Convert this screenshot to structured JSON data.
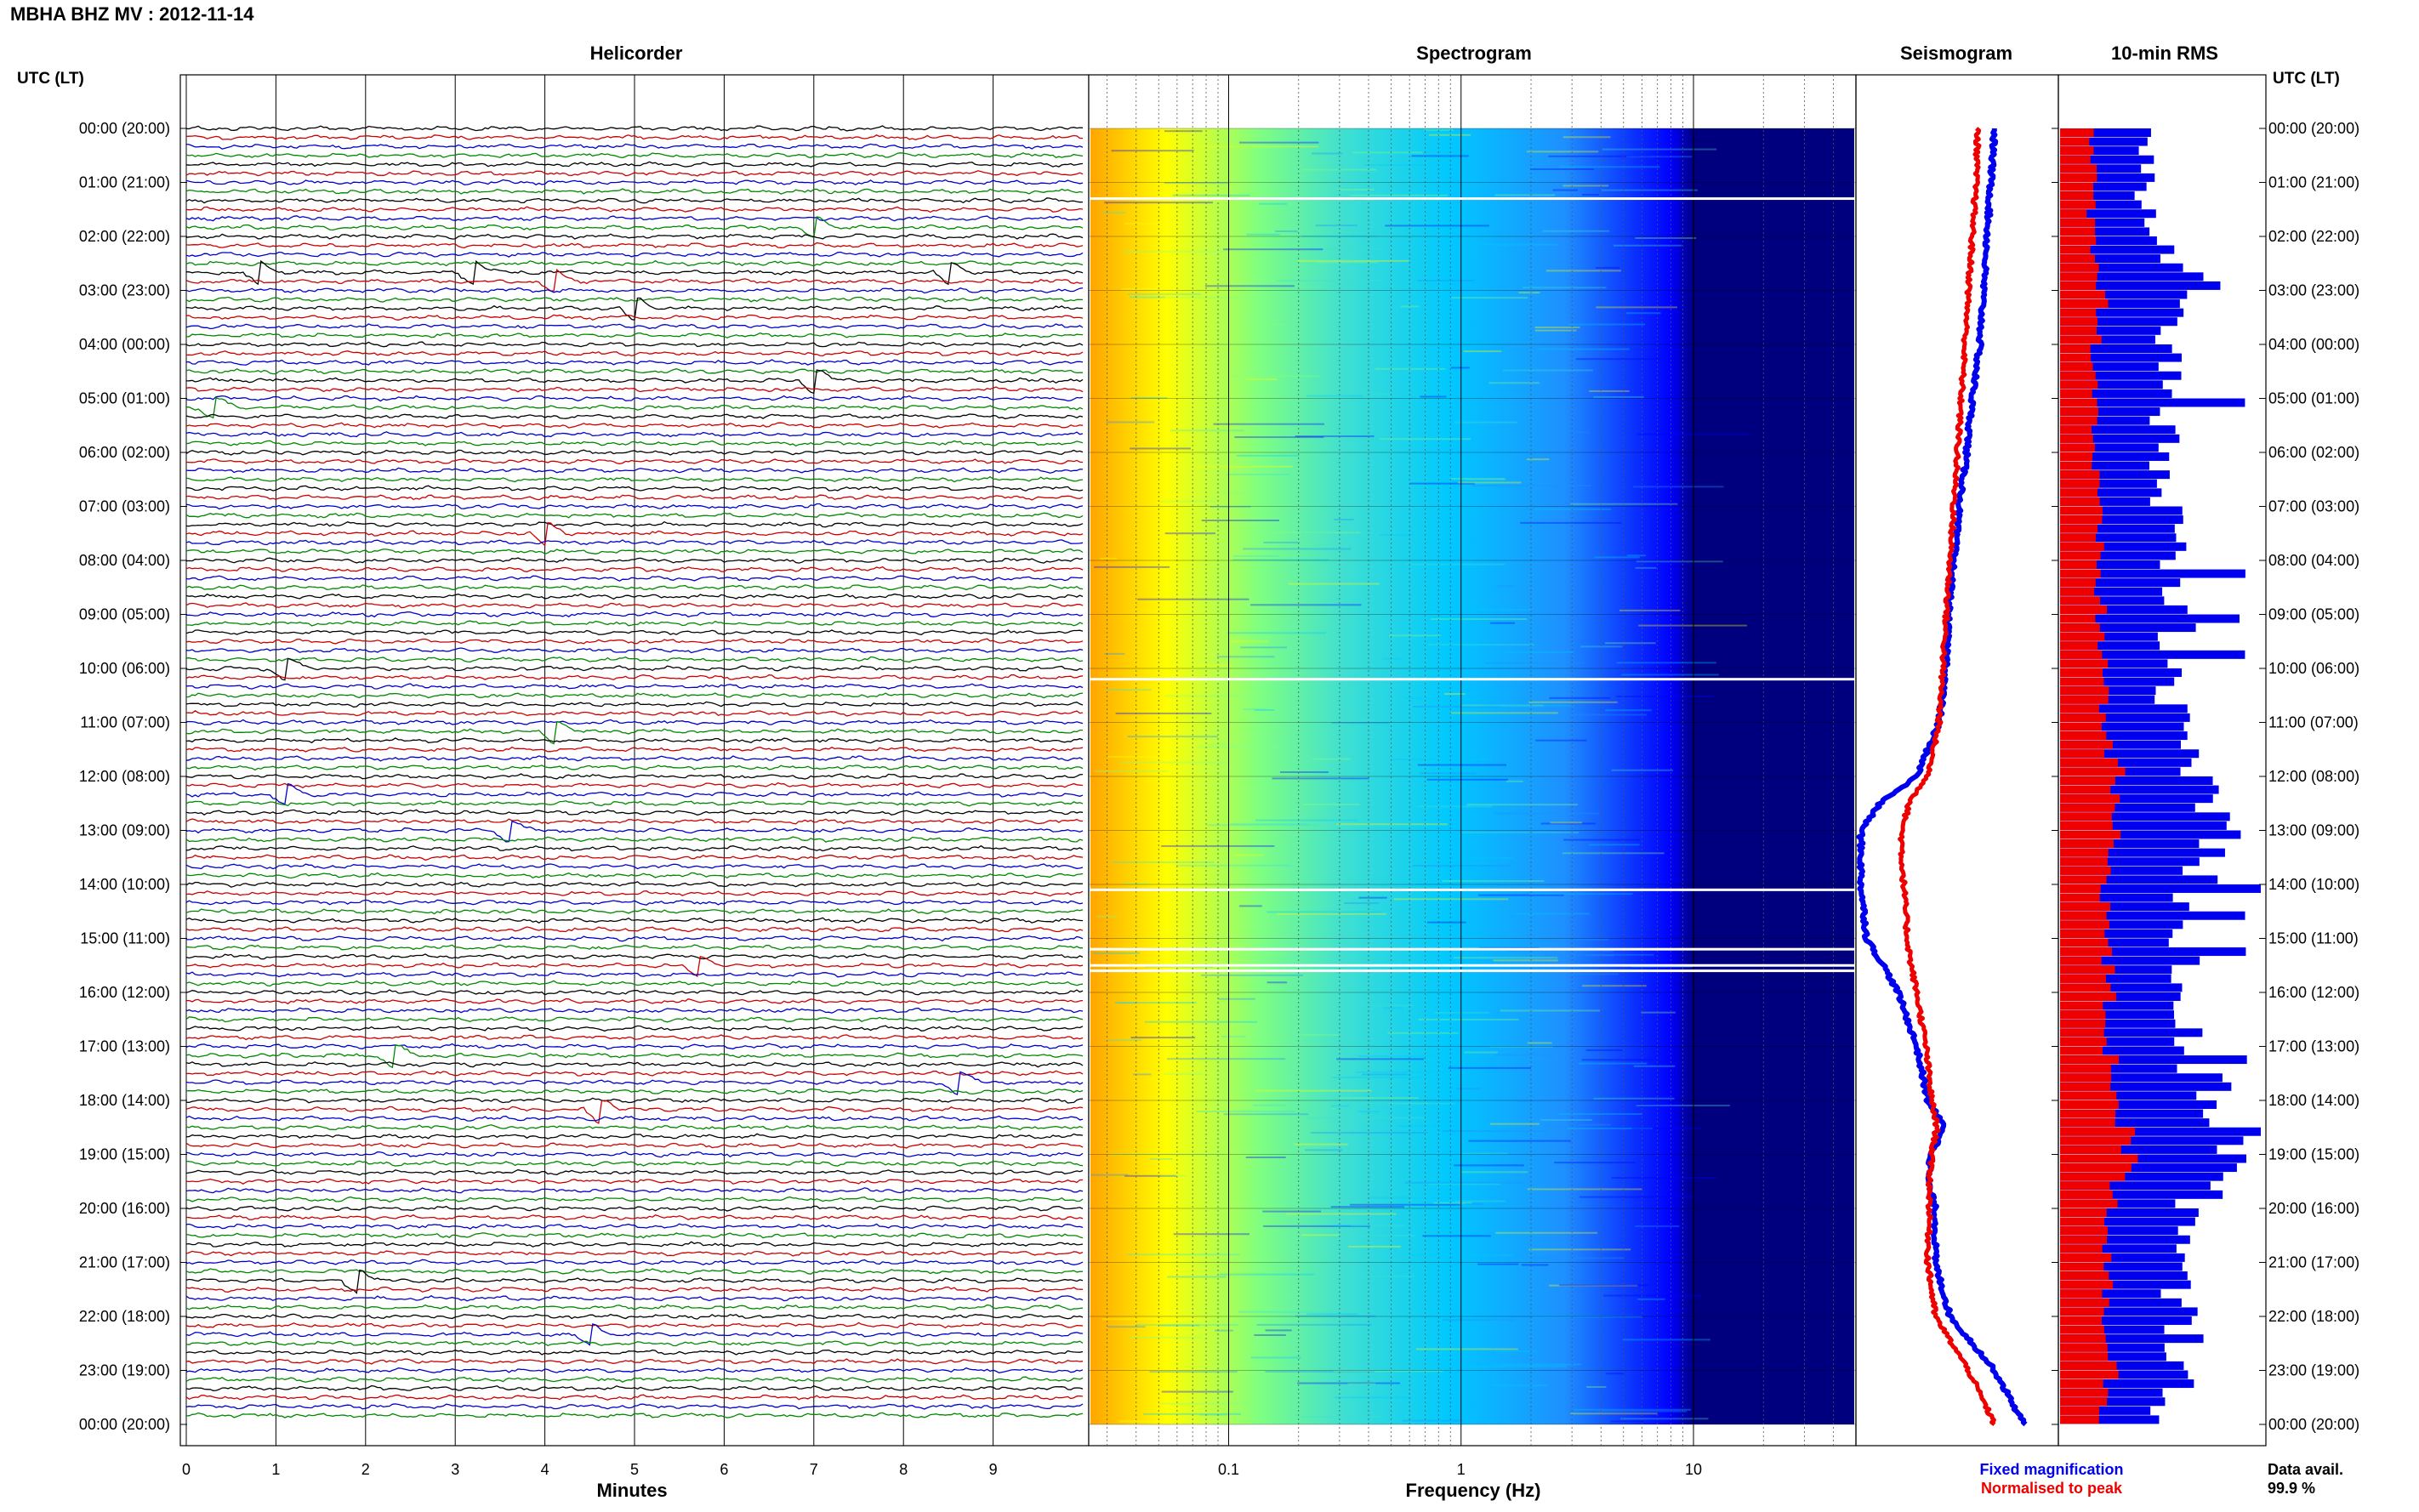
{
  "page": {
    "station_title": "MBHA BHZ MV : 2012-11-14"
  },
  "panels": {
    "helicorder": "Helicorder",
    "spectrogram": "Spectrogram",
    "seismogram": "Seismogram",
    "rms": "10-min RMS"
  },
  "time_axis": {
    "header": "UTC (LT)",
    "labels": [
      "00:00 (20:00)",
      "01:00 (21:00)",
      "02:00 (22:00)",
      "03:00 (23:00)",
      "04:00 (00:00)",
      "05:00 (01:00)",
      "06:00 (02:00)",
      "07:00 (03:00)",
      "08:00 (04:00)",
      "09:00 (05:00)",
      "10:00 (06:00)",
      "11:00 (07:00)",
      "12:00 (08:00)",
      "13:00 (09:00)",
      "14:00 (10:00)",
      "15:00 (11:00)",
      "16:00 (12:00)",
      "17:00 (13:00)",
      "18:00 (14:00)",
      "19:00 (15:00)",
      "20:00 (16:00)",
      "21:00 (17:00)",
      "22:00 (18:00)",
      "23:00 (19:00)",
      "00:00 (20:00)"
    ]
  },
  "axes": {
    "minutes_label": "Minutes",
    "minute_ticks": [
      "0",
      "1",
      "2",
      "3",
      "4",
      "5",
      "6",
      "7",
      "8",
      "9"
    ],
    "frequency_label": "Frequency (Hz)",
    "frequency_ticks": [
      "0.1",
      "1",
      "10"
    ]
  },
  "legend": {
    "fixed": "Fixed magnification",
    "normalised": "Normalised to peak",
    "fixed_color": "#0000ee",
    "normalised_color": "#ee0000",
    "data_avail_label": "Data avail.",
    "data_avail_value": "99.9 %"
  },
  "colors": {
    "trace_cycle": [
      "#000000",
      "#cc0000",
      "#0000cc",
      "#008800"
    ],
    "spectrogram_colormap": [
      "#00007f",
      "#0000ff",
      "#1e90ff",
      "#00c8ff",
      "#40e0d0",
      "#80ff80",
      "#ffff00",
      "#ffa500"
    ]
  },
  "chart_data": [
    {
      "type": "line",
      "title": "Helicorder",
      "xlabel": "Minutes",
      "xlim": [
        0,
        10
      ],
      "rows_per_hour": 6,
      "hours": 24,
      "events": [
        {
          "row": 11,
          "minute": 6.9
        },
        {
          "row": 16,
          "minute": 0.7
        },
        {
          "row": 16,
          "minute": 3.1
        },
        {
          "row": 16,
          "minute": 8.4
        },
        {
          "row": 17,
          "minute": 4.0
        },
        {
          "row": 20,
          "minute": 4.9
        },
        {
          "row": 28,
          "minute": 6.9
        },
        {
          "row": 31,
          "minute": 0.2
        },
        {
          "row": 45,
          "minute": 3.9
        },
        {
          "row": 60,
          "minute": 1.0
        },
        {
          "row": 67,
          "minute": 4.0
        },
        {
          "row": 74,
          "minute": 1.0
        },
        {
          "row": 78,
          "minute": 3.5
        },
        {
          "row": 93,
          "minute": 5.6
        },
        {
          "row": 103,
          "minute": 2.2
        },
        {
          "row": 106,
          "minute": 8.5
        },
        {
          "row": 109,
          "minute": 4.5
        },
        {
          "row": 128,
          "minute": 1.8
        },
        {
          "row": 134,
          "minute": 4.4
        }
      ]
    },
    {
      "type": "heatmap",
      "title": "Spectrogram",
      "xlabel": "Frequency (Hz)",
      "x_scale": "log",
      "xlim": [
        0.025,
        50
      ],
      "ylim_hours": [
        0,
        24
      ],
      "data_gaps_hours": [
        1.3,
        10.2,
        14.1,
        15.2,
        15.5,
        15.6
      ]
    },
    {
      "type": "line",
      "title": "Seismogram",
      "hours": [
        0,
        1,
        2,
        3,
        4,
        5,
        6,
        7,
        8,
        9,
        10,
        11,
        12,
        12.5,
        13,
        13.5,
        14,
        15,
        15.5,
        16,
        17,
        18,
        18.5,
        19,
        19.5,
        20,
        21,
        22,
        23,
        24
      ],
      "series": [
        {
          "name": "Fixed magnification",
          "values": [
            0.72,
            0.7,
            0.68,
            0.66,
            0.64,
            0.6,
            0.57,
            0.53,
            0.5,
            0.47,
            0.46,
            0.42,
            0.3,
            0.1,
            0.0,
            0.0,
            0.0,
            0.03,
            0.12,
            0.2,
            0.3,
            0.36,
            0.45,
            0.38,
            0.36,
            0.4,
            0.4,
            0.48,
            0.72,
            0.88
          ]
        },
        {
          "name": "Normalised to peak",
          "values": [
            0.63,
            0.62,
            0.6,
            0.58,
            0.56,
            0.54,
            0.52,
            0.5,
            0.48,
            0.46,
            0.44,
            0.42,
            0.36,
            0.26,
            0.22,
            0.22,
            0.23,
            0.25,
            0.27,
            0.3,
            0.35,
            0.38,
            0.41,
            0.38,
            0.37,
            0.37,
            0.36,
            0.4,
            0.58,
            0.72
          ]
        }
      ]
    },
    {
      "type": "bar",
      "title": "10-min RMS",
      "bins": 144,
      "series": [
        {
          "name": "Fixed magnification",
          "profile_hours": [
            0,
            1,
            2,
            3,
            4,
            5,
            6,
            7,
            8,
            9,
            10,
            11,
            12,
            13,
            14,
            15,
            16,
            17,
            18,
            19,
            20,
            21,
            22,
            23,
            24
          ],
          "profile_values": [
            0.45,
            0.4,
            0.45,
            0.72,
            0.52,
            0.55,
            0.5,
            0.55,
            0.55,
            0.58,
            0.6,
            0.55,
            0.7,
            0.82,
            0.7,
            0.62,
            0.62,
            0.6,
            0.78,
            0.95,
            0.65,
            0.55,
            0.6,
            0.65,
            0.5
          ]
        },
        {
          "name": "Normalised to peak",
          "profile_hours": [
            0,
            1,
            2,
            3,
            4,
            5,
            6,
            7,
            8,
            9,
            10,
            11,
            12,
            13,
            14,
            15,
            16,
            17,
            18,
            19,
            20,
            21,
            22,
            23,
            24
          ],
          "profile_values": [
            0.15,
            0.16,
            0.16,
            0.22,
            0.18,
            0.18,
            0.17,
            0.18,
            0.19,
            0.2,
            0.22,
            0.22,
            0.28,
            0.26,
            0.24,
            0.23,
            0.24,
            0.24,
            0.3,
            0.34,
            0.26,
            0.24,
            0.24,
            0.26,
            0.2
          ]
        }
      ]
    }
  ]
}
